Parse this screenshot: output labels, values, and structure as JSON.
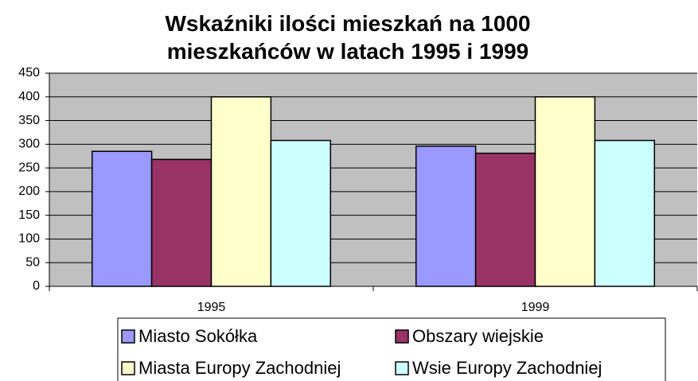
{
  "chart_data": {
    "type": "bar",
    "title": "Wskaźniki ilości mieszkań na 1000 mieszkańców w latach 1995 i 1999",
    "categories": [
      "1995",
      "1999"
    ],
    "series": [
      {
        "name": "Miasto Sokółka",
        "color": "#9999ff",
        "values": [
          285,
          296
        ]
      },
      {
        "name": "Obszary wiejskie",
        "color": "#993366",
        "values": [
          268,
          281
        ]
      },
      {
        "name": "Miasta Europy Zachodniej",
        "color": "#ffffcc",
        "values": [
          400,
          400
        ]
      },
      {
        "name": "Wsie Europy Zachodniej",
        "color": "#ccffff",
        "values": [
          308,
          308
        ]
      }
    ],
    "ylim": [
      0,
      450
    ],
    "yticks": [
      0,
      50,
      100,
      150,
      200,
      250,
      300,
      350,
      400,
      450
    ],
    "grid": true,
    "legend": "bottom"
  }
}
